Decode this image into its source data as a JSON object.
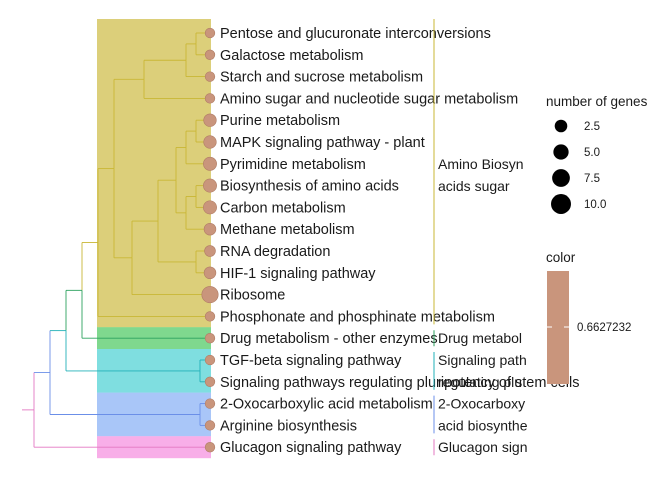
{
  "chart_data": {
    "type": "treeplot",
    "terms": [
      {
        "label": "Pentose and glucuronate interconversions",
        "count": 1,
        "cluster": 0
      },
      {
        "label": "Galactose metabolism",
        "count": 1,
        "cluster": 0
      },
      {
        "label": "Starch and sucrose metabolism",
        "count": 1,
        "cluster": 0
      },
      {
        "label": "Amino sugar and nucleotide sugar metabolism",
        "count": 1,
        "cluster": 0
      },
      {
        "label": "Purine metabolism",
        "count": 4,
        "cluster": 0
      },
      {
        "label": "MAPK signaling pathway - plant",
        "count": 4,
        "cluster": 0
      },
      {
        "label": "Pyrimidine metabolism",
        "count": 5,
        "cluster": 0
      },
      {
        "label": "Biosynthesis of amino acids",
        "count": 5,
        "cluster": 0
      },
      {
        "label": "Carbon metabolism",
        "count": 5,
        "cluster": 0
      },
      {
        "label": "Methane metabolism",
        "count": 3,
        "cluster": 0
      },
      {
        "label": "RNA degradation",
        "count": 2,
        "cluster": 0
      },
      {
        "label": "HIF-1 signaling pathway",
        "count": 3,
        "cluster": 0
      },
      {
        "label": "Ribosome",
        "count": 11,
        "cluster": 0
      },
      {
        "label": "Phosphonate and phosphinate metabolism",
        "count": 1,
        "cluster": 0
      },
      {
        "label": "Drug metabolism - other enzymes",
        "count": 1,
        "cluster": 1
      },
      {
        "label": "TGF-beta signaling pathway",
        "count": 1,
        "cluster": 2
      },
      {
        "label": "Signaling pathways regulating pluripotency of stem cells",
        "count": 1,
        "cluster": 2
      },
      {
        "label": "2-Oxocarboxylic acid metabolism",
        "count": 1,
        "cluster": 3
      },
      {
        "label": "Arginine biosynthesis",
        "count": 1,
        "cluster": 3
      },
      {
        "label": "Glucagon signaling pathway",
        "count": 1,
        "cluster": 4
      }
    ],
    "clusters": [
      {
        "lines": [
          "Amino Biosyn",
          "acids sugar"
        ],
        "color": "#c9b736",
        "fill": "#dccf7a"
      },
      {
        "lines": [
          "Drug metabol"
        ],
        "color": "#2ca25f",
        "fill": "#7fd88e"
      },
      {
        "lines": [
          "Signaling path",
          "regulating plu"
        ],
        "color": "#22b0b8",
        "fill": "#7fdee0"
      },
      {
        "lines": [
          "2-Oxocarboxy",
          "acid biosynthe"
        ],
        "color": "#6b8fe8",
        "fill": "#a9c6f8"
      },
      {
        "lines": [
          "Glucagon sign"
        ],
        "color": "#e377c2",
        "fill": "#f8aee8"
      }
    ],
    "size_legend": {
      "title": "number of genes",
      "breaks": [
        2.5,
        5.0,
        7.5,
        10.0
      ],
      "labels": [
        "2.5",
        "5.0",
        "7.5",
        "10.0"
      ]
    },
    "color_legend": {
      "title": "color",
      "value": "0.6627232",
      "color": "#c9957c"
    },
    "node_color": "#c9957c",
    "node_stroke": "#b07d66"
  }
}
